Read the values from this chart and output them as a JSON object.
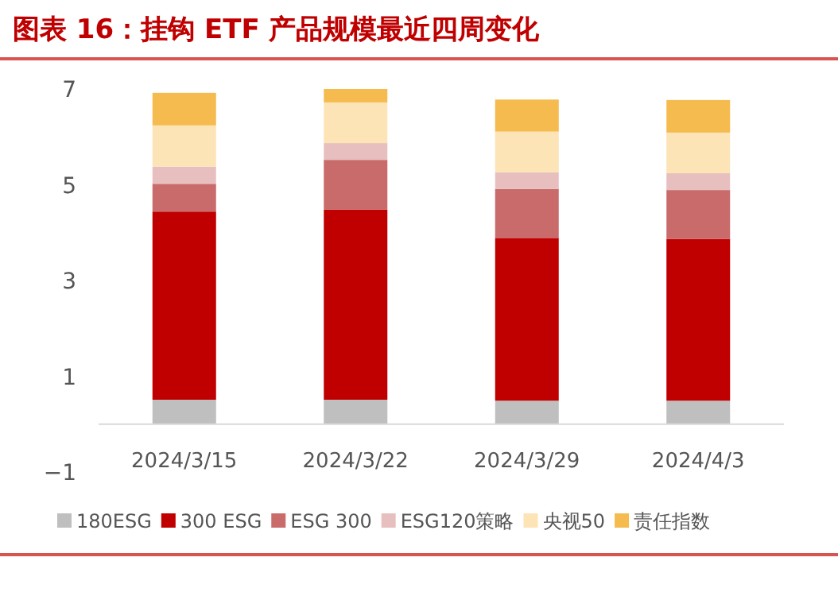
{
  "chart_data": {
    "type": "bar",
    "title": "图表 16：挂钩 ETF 产品规模最近四周变化",
    "stacked": true,
    "categories": [
      "2024/3/15",
      "2024/3/22",
      "2024/3/29",
      "2024/4/3"
    ],
    "ylim": [
      -1,
      7
    ],
    "yticks": [
      {
        "value": -1,
        "label": "−1"
      },
      1,
      3,
      5,
      7
    ],
    "grid": false,
    "legend": "bottom",
    "series": [
      {
        "name": "180ESG",
        "color": "#bfbfbf",
        "values": [
          0.51,
          0.51,
          0.49,
          0.49
        ]
      },
      {
        "name": "300 ESG",
        "color": "#c00000",
        "values": [
          3.93,
          3.97,
          3.4,
          3.38
        ]
      },
      {
        "name": "ESG 300",
        "color": "#c96b6b",
        "values": [
          0.58,
          1.04,
          1.02,
          1.02
        ]
      },
      {
        "name": "ESG120策略",
        "color": "#e8bfbf",
        "values": [
          0.36,
          0.35,
          0.35,
          0.35
        ]
      },
      {
        "name": "央视50",
        "color": "#fce4b6",
        "values": [
          0.86,
          0.85,
          0.85,
          0.85
        ]
      },
      {
        "name": "责任指数",
        "color": "#f5bb4e",
        "values": [
          0.68,
          0.28,
          0.67,
          0.68
        ]
      }
    ]
  }
}
